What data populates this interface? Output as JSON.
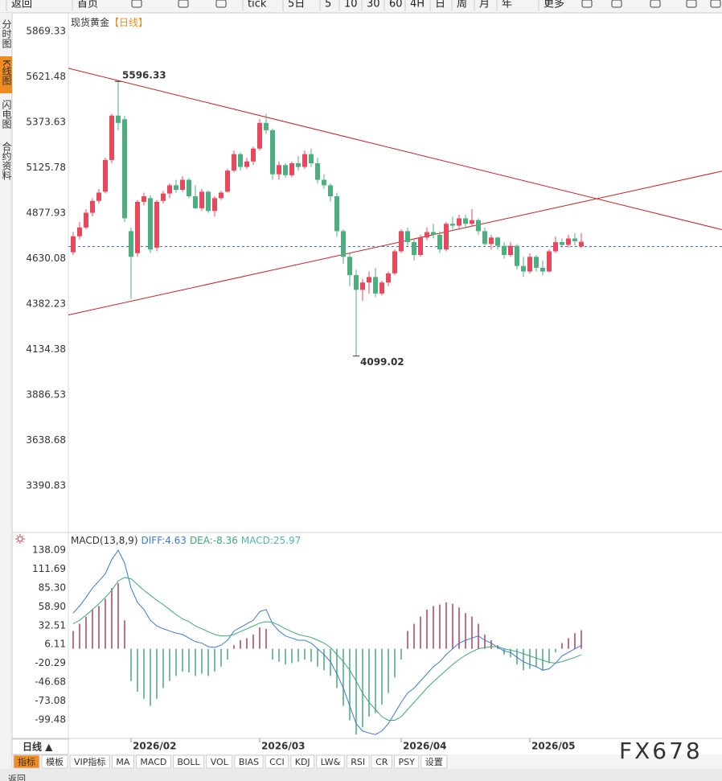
{
  "toolbar": {
    "items": [
      "返回",
      "首页",
      "tick",
      "5日",
      "5",
      "10",
      "30",
      "60",
      "4H",
      "日",
      "周",
      "月",
      "年",
      "更多"
    ]
  },
  "side_tabs": [
    "分时图",
    "K线图",
    "闪电图",
    "合约资料"
  ],
  "chart_data": [
    {
      "type": "candlestick",
      "title": "现货黄金",
      "period": "【日线】",
      "up_color": "#e8485a",
      "down_color": "#4daf80",
      "categories": [
        null,
        null,
        null,
        null,
        null,
        null,
        null,
        null,
        null,
        "2026/02",
        null,
        null,
        null,
        null,
        null,
        null,
        null,
        null,
        null,
        null,
        null,
        null,
        null,
        null,
        null,
        null,
        null,
        null,
        null,
        "2026/03",
        null,
        null,
        null,
        null,
        null,
        null,
        null,
        null,
        null,
        null,
        null,
        null,
        null,
        null,
        null,
        null,
        null,
        null,
        null,
        null,
        null,
        "2026/04",
        null,
        null,
        null,
        null,
        null,
        null,
        null,
        null,
        null,
        null,
        null,
        null,
        null,
        null,
        null,
        null,
        null,
        null,
        null,
        "2026/05",
        null,
        null,
        null,
        null,
        null,
        null,
        null
      ],
      "ohlc": [
        [
          4665,
          4775,
          4650,
          4752
        ],
        [
          4752,
          4830,
          4735,
          4800
        ],
        [
          4800,
          4900,
          4790,
          4880
        ],
        [
          4880,
          4960,
          4860,
          4945
        ],
        [
          4945,
          5010,
          4930,
          4990
        ],
        [
          4995,
          5180,
          4985,
          5168
        ],
        [
          5168,
          5420,
          5150,
          5410
        ],
        [
          5410,
          5596.33,
          5330,
          5370
        ],
        [
          5390,
          5410,
          4830,
          4850
        ],
        [
          4780,
          4800,
          4410,
          4640
        ],
        [
          4660,
          4950,
          4640,
          4940
        ],
        [
          4940,
          4990,
          4920,
          4970
        ],
        [
          4960,
          4975,
          4660,
          4680
        ],
        [
          4690,
          4950,
          4670,
          4940
        ],
        [
          4945,
          5000,
          4930,
          4985
        ],
        [
          4985,
          5040,
          4960,
          5030
        ],
        [
          5030,
          5060,
          4990,
          5005
        ],
        [
          5005,
          5080,
          4995,
          5060
        ],
        [
          5060,
          5070,
          4960,
          4970
        ],
        [
          4970,
          5030,
          4900,
          4905
        ],
        [
          4905,
          5010,
          4890,
          4995
        ],
        [
          4995,
          5000,
          4880,
          4890
        ],
        [
          4890,
          4970,
          4860,
          4960
        ],
        [
          4960,
          5000,
          4950,
          4990
        ],
        [
          4995,
          5120,
          4990,
          5110
        ],
        [
          5110,
          5220,
          5100,
          5200
        ],
        [
          5200,
          5210,
          5110,
          5130
        ],
        [
          5130,
          5180,
          5120,
          5160
        ],
        [
          5160,
          5240,
          5140,
          5230
        ],
        [
          5230,
          5390,
          5220,
          5370
        ],
        [
          5370,
          5420,
          5310,
          5330
        ],
        [
          5330,
          5340,
          5060,
          5090
        ],
        [
          5090,
          5160,
          5060,
          5140
        ],
        [
          5140,
          5150,
          5070,
          5085
        ],
        [
          5085,
          5160,
          5075,
          5150
        ],
        [
          5150,
          5190,
          5110,
          5130
        ],
        [
          5130,
          5220,
          5120,
          5200
        ],
        [
          5200,
          5230,
          5130,
          5150
        ],
        [
          5150,
          5180,
          5040,
          5060
        ],
        [
          5060,
          5090,
          5010,
          5030
        ],
        [
          5030,
          5040,
          4940,
          4970
        ],
        [
          4970,
          4990,
          4750,
          4780
        ],
        [
          4780,
          4790,
          4600,
          4640
        ],
        [
          4640,
          4660,
          4480,
          4540
        ],
        [
          4540,
          4570,
          4099.02,
          4460
        ],
        [
          4460,
          4520,
          4400,
          4500
        ],
        [
          4500,
          4560,
          4440,
          4530
        ],
        [
          4530,
          4580,
          4420,
          4440
        ],
        [
          4440,
          4510,
          4430,
          4500
        ],
        [
          4500,
          4560,
          4480,
          4550
        ],
        [
          4550,
          4680,
          4540,
          4670
        ],
        [
          4670,
          4790,
          4660,
          4780
        ],
        [
          4780,
          4800,
          4700,
          4720
        ],
        [
          4720,
          4740,
          4620,
          4650
        ],
        [
          4650,
          4760,
          4640,
          4745
        ],
        [
          4745,
          4800,
          4730,
          4775
        ],
        [
          4775,
          4820,
          4740,
          4760
        ],
        [
          4760,
          4780,
          4660,
          4680
        ],
        [
          4680,
          4830,
          4670,
          4820
        ],
        [
          4820,
          4860,
          4790,
          4810
        ],
        [
          4810,
          4870,
          4790,
          4850
        ],
        [
          4850,
          4870,
          4800,
          4820
        ],
        [
          4820,
          4900,
          4810,
          4840
        ],
        [
          4840,
          4850,
          4760,
          4780
        ],
        [
          4780,
          4800,
          4700,
          4710
        ],
        [
          4710,
          4760,
          4680,
          4745
        ],
        [
          4745,
          4750,
          4680,
          4700
        ],
        [
          4700,
          4720,
          4630,
          4650
        ],
        [
          4650,
          4720,
          4640,
          4700
        ],
        [
          4700,
          4710,
          4570,
          4590
        ],
        [
          4590,
          4640,
          4530,
          4560
        ],
        [
          4560,
          4660,
          4550,
          4640
        ],
        [
          4640,
          4650,
          4560,
          4580
        ],
        [
          4580,
          4620,
          4540,
          4560
        ],
        [
          4560,
          4680,
          4555,
          4670
        ],
        [
          4670,
          4750,
          4660,
          4720
        ],
        [
          4720,
          4740,
          4690,
          4705
        ],
        [
          4705,
          4760,
          4690,
          4740
        ],
        [
          4740,
          4770,
          4700,
          4725
        ],
        [
          4696,
          4770,
          4690,
          4722
        ]
      ],
      "ylim": [
        3146,
        5970
      ],
      "yticks": [
        5869.33,
        5621.48,
        5373.63,
        5125.78,
        4877.93,
        4630.08,
        4382.23,
        4134.38,
        3886.53,
        3638.68,
        3390.83
      ],
      "current_price": 4696,
      "current_price_color": "#3a6fd0",
      "trendlines": [
        {
          "left": 5668,
          "right": 4788,
          "color": "#cc1f1f"
        },
        {
          "left": 4323,
          "right": 5107,
          "color": "#cc1f1f"
        }
      ]
    },
    {
      "type": "macd",
      "title": "MACD(13,8,9)",
      "series": [
        {
          "name": "DIFF:",
          "color": "#3a7ad8",
          "values": [
            50,
            60,
            72,
            85,
            95,
            105,
            125,
            138,
            120,
            85,
            65,
            55,
            40,
            32,
            28,
            25,
            22,
            20,
            15,
            10,
            8,
            3,
            2,
            5,
            12,
            25,
            30,
            35,
            40,
            52,
            55,
            35,
            25,
            18,
            15,
            12,
            12,
            8,
            0,
            -8,
            -18,
            -35,
            -55,
            -80,
            -105,
            -115,
            -118,
            -120,
            -115,
            -105,
            -90,
            -75,
            -62,
            -55,
            -45,
            -35,
            -25,
            -18,
            -8,
            0,
            8,
            12,
            15,
            18,
            12,
            8,
            2,
            -3,
            -5,
            -12,
            -18,
            -22,
            -25,
            -30,
            -28,
            -20,
            -10,
            -5,
            0,
            4.63
          ]
        },
        {
          "name": "DEA:",
          "color": "#3aaa7a",
          "values": [
            35,
            40,
            47,
            55,
            63,
            72,
            82,
            95,
            100,
            98,
            90,
            82,
            75,
            68,
            62,
            55,
            48,
            42,
            38,
            32,
            28,
            24,
            20,
            18,
            18,
            20,
            24,
            28,
            32,
            36,
            38,
            37,
            33,
            28,
            24,
            20,
            18,
            16,
            12,
            8,
            2,
            -8,
            -18,
            -30,
            -45,
            -62,
            -75,
            -85,
            -95,
            -100,
            -100,
            -95,
            -85,
            -75,
            -65,
            -55,
            -46,
            -38,
            -30,
            -22,
            -15,
            -9,
            -4,
            0,
            2,
            3,
            3,
            0,
            -2,
            -4,
            -7,
            -10,
            -13,
            -16,
            -19,
            -20,
            -18,
            -15,
            -12,
            -8.36
          ]
        },
        {
          "name": "MACD:",
          "color": "#4cb8b0",
          "up_color": "#a8405e",
          "down_color": "#4aa882",
          "values": [
            25,
            35,
            45,
            55,
            60,
            70,
            85,
            92,
            40,
            -45,
            -60,
            -70,
            -80,
            -70,
            -55,
            -45,
            -38,
            -32,
            -33,
            -38,
            -35,
            -38,
            -32,
            -25,
            -15,
            5,
            12,
            15,
            20,
            30,
            28,
            -15,
            -18,
            -22,
            -20,
            -18,
            -15,
            -18,
            -25,
            -30,
            -38,
            -55,
            -80,
            -100,
            -120,
            -110,
            -95,
            -90,
            -78,
            -62,
            -40,
            -15,
            25,
            35,
            45,
            55,
            60,
            62,
            65,
            63,
            58,
            50,
            45,
            35,
            20,
            12,
            5,
            -8,
            -12,
            -22,
            -30,
            -28,
            -25,
            -30,
            -20,
            -5,
            8,
            15,
            22,
            25.97
          ]
        }
      ],
      "ylim": [
        -125.4,
        162.9
      ],
      "yticks": [
        138.09,
        111.69,
        {
          "value": 85.3,
          "label": "85.30"
        },
        {
          "value": 58.9,
          "label": "58.90"
        },
        32.51,
        6.11,
        -20.29,
        -46.68,
        -73.08,
        -99.48
      ]
    }
  ],
  "footer": {
    "period": "日线 ▲",
    "tabs": [
      "指标",
      "模板",
      "VIP指标",
      "MA",
      "MACD",
      "BOLL",
      "VOL",
      "BIAS",
      "CCI",
      "KDJ",
      "LW&",
      "RSI",
      "CR",
      "PSY",
      "设置"
    ]
  },
  "watermark": "FX678",
  "bottom_strip": "返回"
}
